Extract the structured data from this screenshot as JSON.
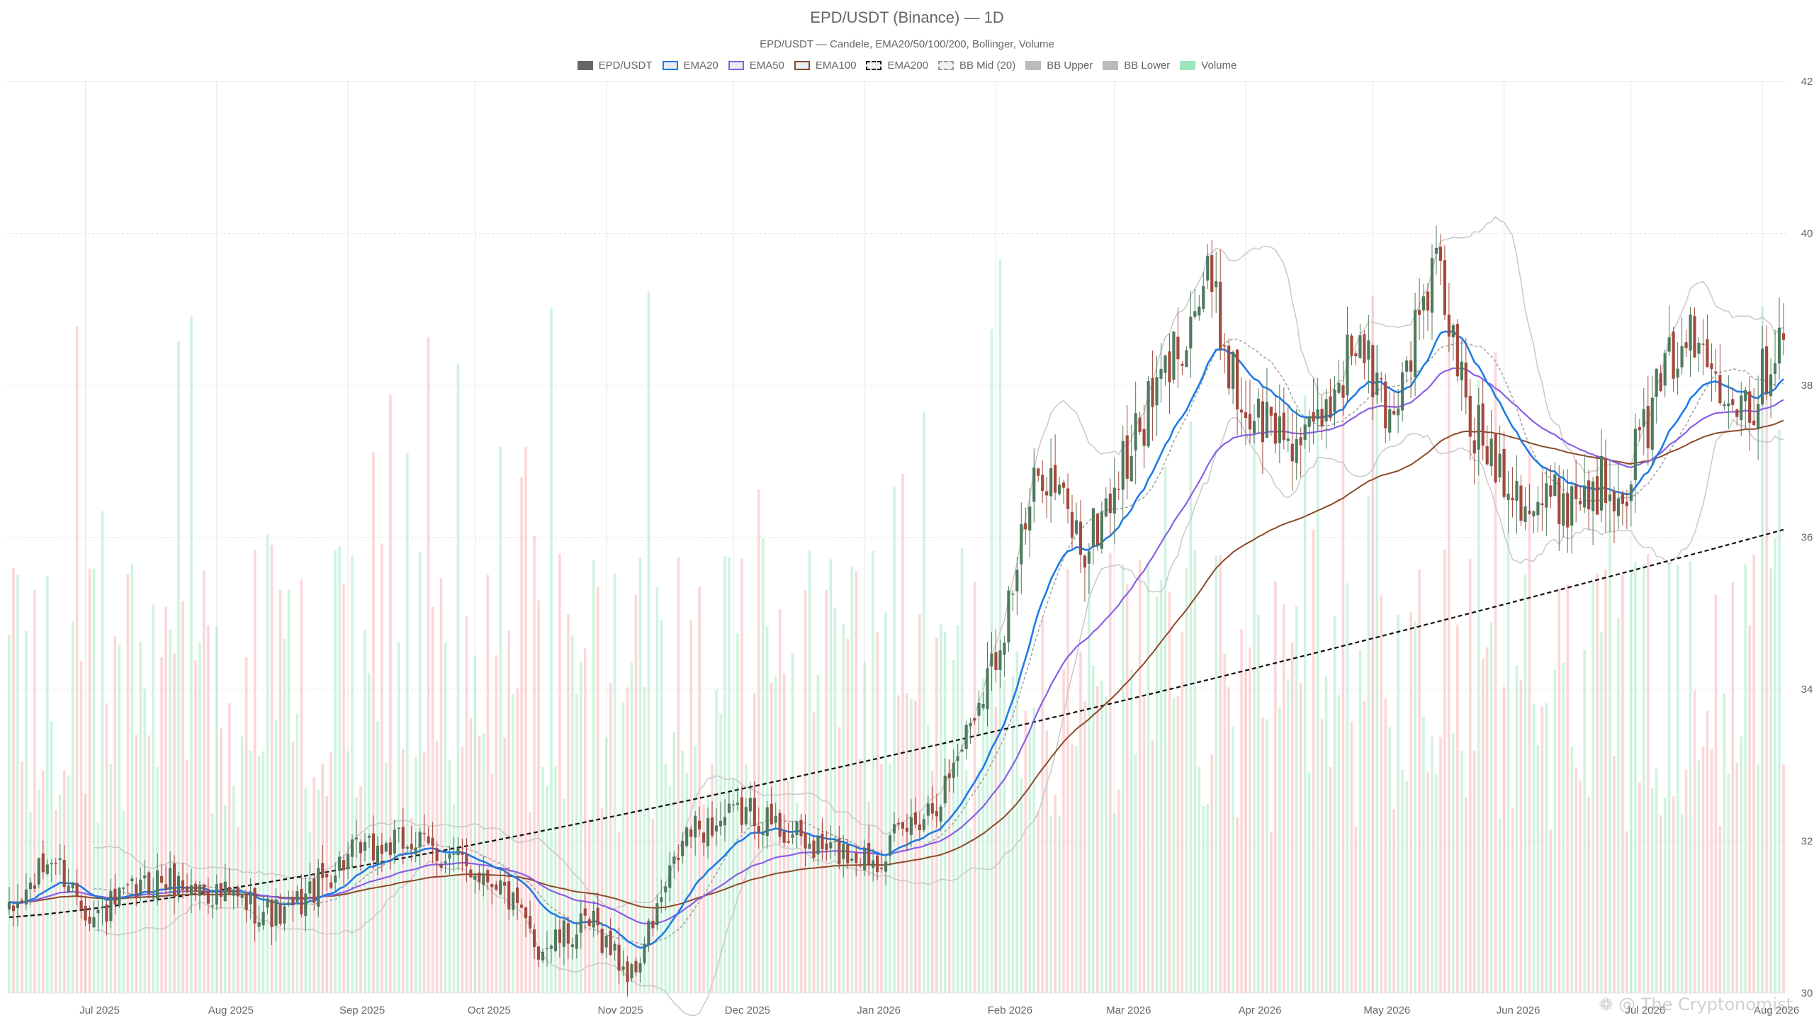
{
  "chart_data": {
    "type": "candlestick",
    "title": "EPD/USDT (Binance) — 1D",
    "subtitle": "EPD/USDT — Candele, EMA20/50/100/200, Bollinger, Volume",
    "legend": [
      {
        "label": "EPD/USDT",
        "color": "#666666",
        "style": "fill"
      },
      {
        "label": "EMA20",
        "color": "#1e7be6",
        "style": "outline"
      },
      {
        "label": "EMA50",
        "color": "#8a5fe6",
        "style": "outline"
      },
      {
        "label": "EMA100",
        "color": "#8b4a2b",
        "style": "outline"
      },
      {
        "label": "EMA200",
        "color": "#111111",
        "style": "dashed"
      },
      {
        "label": "BB Mid (20)",
        "color": "#9a9a9a",
        "style": "dashed"
      },
      {
        "label": "BB Upper",
        "color": "#bbbbbb",
        "style": "fill"
      },
      {
        "label": "BB Lower",
        "color": "#bbbbbb",
        "style": "fill"
      },
      {
        "label": "Volume",
        "color": "#9ee6bf",
        "style": "fill"
      }
    ],
    "y_axis": {
      "position": "right",
      "min": 30,
      "max": 42,
      "ticks": [
        30,
        32,
        34,
        36,
        38,
        40,
        42
      ]
    },
    "x_axis": {
      "ticks": [
        "Jul 2025",
        "Aug 2025",
        "Sep 2025",
        "Oct 2025",
        "Nov 2025",
        "Dec 2025",
        "Jan 2026",
        "Feb 2026",
        "Mar 2026",
        "Apr 2026",
        "May 2026",
        "Jun 2026",
        "Jul 2026",
        "Aug 2026"
      ],
      "start_date": "2025-06-13",
      "days": 420
    },
    "anchors": [
      {
        "day": 0,
        "close": 31.0
      },
      {
        "day": 10,
        "close": 31.8
      },
      {
        "day": 20,
        "close": 31.0
      },
      {
        "day": 35,
        "close": 31.5
      },
      {
        "day": 50,
        "close": 31.3
      },
      {
        "day": 65,
        "close": 31.0
      },
      {
        "day": 80,
        "close": 31.8
      },
      {
        "day": 95,
        "close": 32.0
      },
      {
        "day": 115,
        "close": 31.5
      },
      {
        "day": 125,
        "close": 30.6
      },
      {
        "day": 138,
        "close": 30.9
      },
      {
        "day": 147,
        "close": 30.2
      },
      {
        "day": 160,
        "close": 32.1
      },
      {
        "day": 175,
        "close": 32.4
      },
      {
        "day": 190,
        "close": 31.9
      },
      {
        "day": 205,
        "close": 31.8
      },
      {
        "day": 220,
        "close": 32.6
      },
      {
        "day": 232,
        "close": 34.3
      },
      {
        "day": 244,
        "close": 37.0
      },
      {
        "day": 254,
        "close": 35.8
      },
      {
        "day": 266,
        "close": 37.3
      },
      {
        "day": 283,
        "close": 39.4
      },
      {
        "day": 291,
        "close": 37.7
      },
      {
        "day": 307,
        "close": 37.2
      },
      {
        "day": 318,
        "close": 38.6
      },
      {
        "day": 326,
        "close": 37.6
      },
      {
        "day": 337,
        "close": 39.6
      },
      {
        "day": 345,
        "close": 37.5
      },
      {
        "day": 360,
        "close": 36.4
      },
      {
        "day": 372,
        "close": 36.6
      },
      {
        "day": 382,
        "close": 36.8
      },
      {
        "day": 395,
        "close": 38.7
      },
      {
        "day": 403,
        "close": 38.2
      },
      {
        "day": 412,
        "close": 37.8
      },
      {
        "day": 419,
        "close": 38.9
      }
    ],
    "ema200_start": 31.0,
    "ema200_end": 36.1,
    "volume_peak_day": 234,
    "grid": true,
    "legend_position": "top-center"
  },
  "watermark": "❁ @ The Cryptonomist"
}
